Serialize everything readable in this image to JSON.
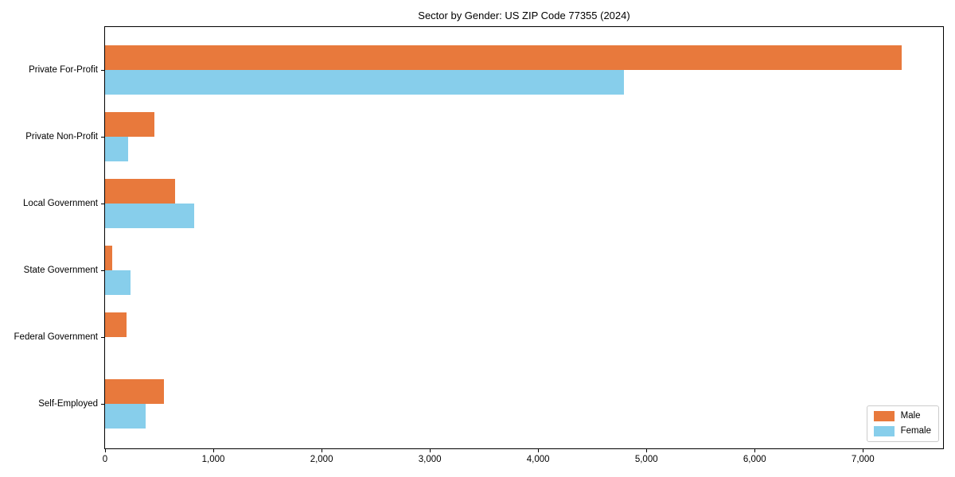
{
  "title": "Sector by Gender: US ZIP Code 77355 (2024)",
  "colors": {
    "male": "#E8793C",
    "female": "#87CEEB",
    "axis": "#000000",
    "background": "#ffffff",
    "legend_border": "#cccccc"
  },
  "legend": {
    "position": "lower right",
    "entries": [
      {
        "label": "Male",
        "color": "#E8793C"
      },
      {
        "label": "Female",
        "color": "#87CEEB"
      }
    ]
  },
  "chart_data": {
    "type": "bar",
    "orientation": "horizontal",
    "title": "Sector by Gender: US ZIP Code 77355 (2024)",
    "categories": [
      "Private For-Profit",
      "Private Non-Profit",
      "Local Government",
      "State Government",
      "Federal Government",
      "Self-Employed"
    ],
    "series": [
      {
        "name": "Male",
        "color": "#E8793C",
        "values": [
          7360,
          455,
          645,
          65,
          200,
          545
        ]
      },
      {
        "name": "Female",
        "color": "#87CEEB",
        "values": [
          4790,
          215,
          820,
          235,
          0,
          375
        ]
      }
    ],
    "xlabel": "",
    "ylabel": "",
    "xlim": [
      0,
      7740
    ],
    "xticks": [
      0,
      1000,
      2000,
      3000,
      4000,
      5000,
      6000,
      7000
    ],
    "xtick_labels": [
      "0",
      "1,000",
      "2,000",
      "3,000",
      "4,000",
      "5,000",
      "6,000",
      "7,000"
    ],
    "grid": false,
    "legend_position": "lower right"
  }
}
